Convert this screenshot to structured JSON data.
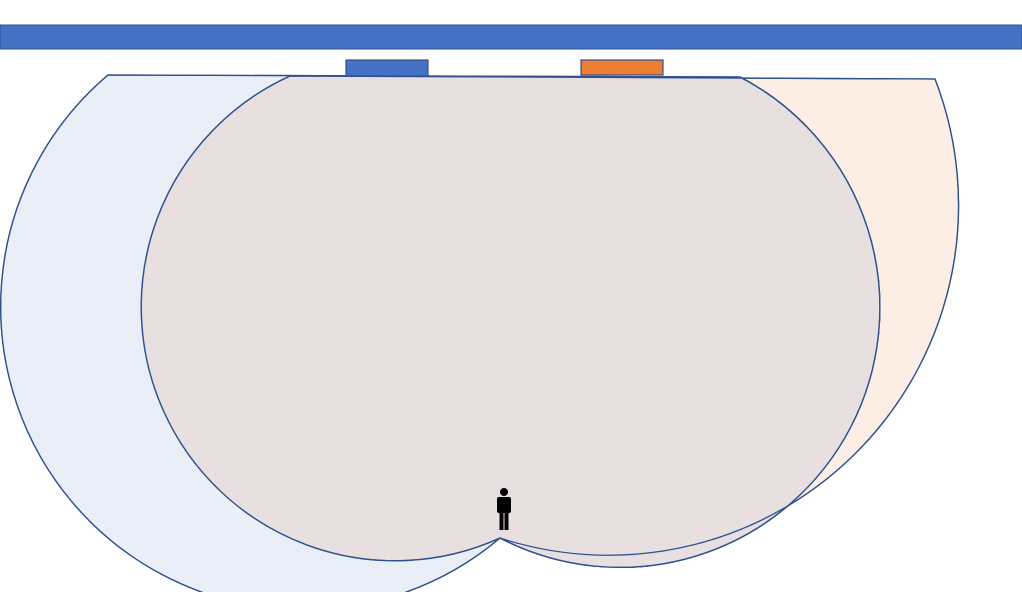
{
  "diagram": {
    "colors": {
      "background": "#ffffff",
      "ceiling_bar": "#4472C4",
      "ceiling_bar_stroke": "#2F528F",
      "sensor_left": "#4472C4",
      "sensor_right": "#ED7D31",
      "sensor_stroke": "#2F528F",
      "zone_left_fill": "#E9EEF7",
      "zone_right_fill": "#FCEEE5",
      "overlap_fill": "#E8E0E0",
      "zone_outline": "#2F528F",
      "person": "#000000"
    },
    "icons": {
      "person": "person-icon"
    }
  }
}
